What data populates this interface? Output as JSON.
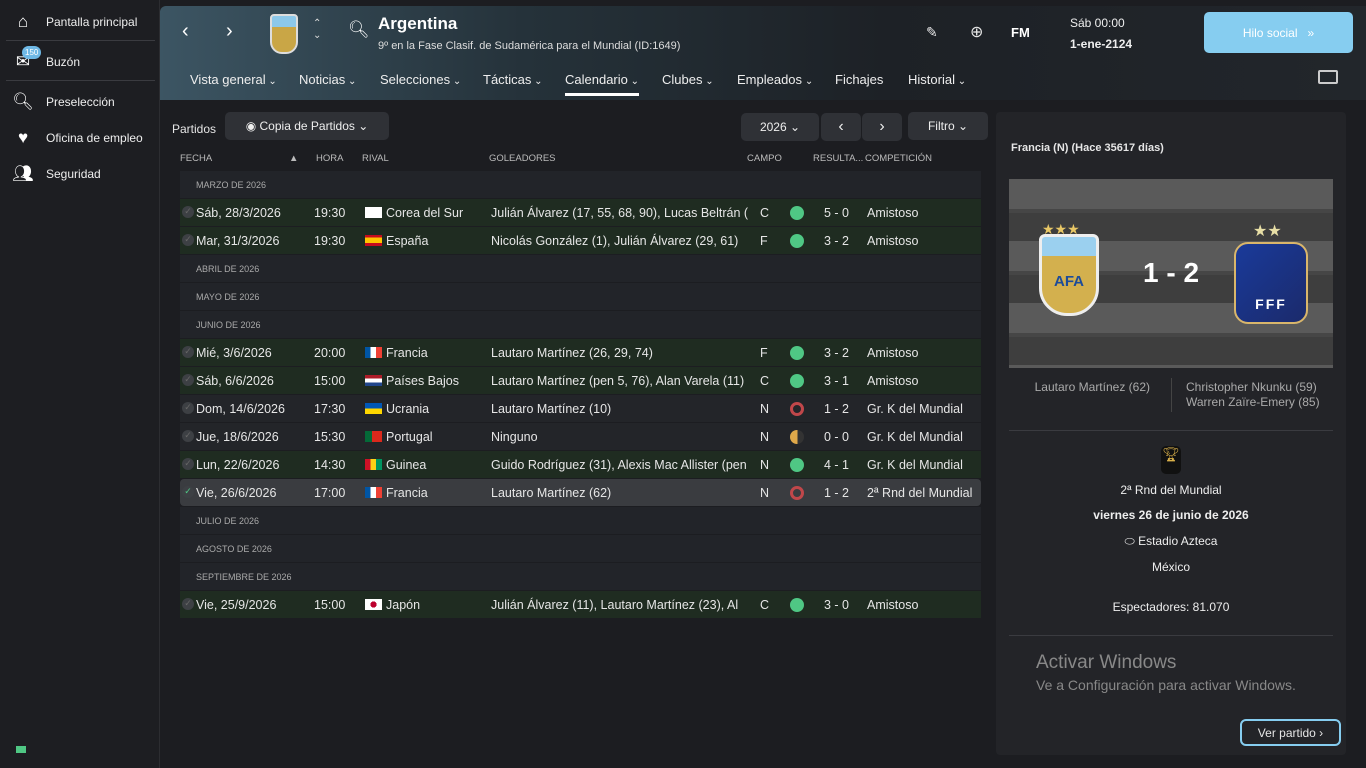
{
  "sidebar": {
    "items": [
      {
        "label": "Pantalla principal",
        "icon": "home-icon"
      },
      {
        "label": "Buzón",
        "icon": "inbox-icon",
        "badge": "150"
      },
      {
        "label": "Preselección",
        "icon": "search-icon"
      },
      {
        "label": "Oficina de empleo",
        "icon": "job-search-icon"
      },
      {
        "label": "Seguridad",
        "icon": "security-icon"
      }
    ]
  },
  "header": {
    "title": "Argentina",
    "subtitle": "9º en la Fase Clasif. de Sudamérica para el Mundial (ID:1649)",
    "fm_label": "FM",
    "date_line1": "Sáb 00:00",
    "date_line2": "1-ene-2124",
    "social_label": "Hilo social",
    "nav": [
      "Vista general",
      "Noticias",
      "Selecciones",
      "Tácticas",
      "Calendario",
      "Clubes",
      "Empleados",
      "Fichajes",
      "Historial"
    ],
    "active_nav": "Calendario"
  },
  "toolbar": {
    "label": "Partidos",
    "view": "Copia de Partidos",
    "year": "2026",
    "filter": "Filtro"
  },
  "columns": [
    "FECHA",
    "HORA",
    "RIVAL",
    "GOLEADORES",
    "CAMPO",
    "RESULTA...",
    "COMPETICIÓN"
  ],
  "colors": {
    "win": "#4fc784",
    "loss": "#c0474a",
    "draw": "#e0a94a",
    "accent": "#86cdf0"
  },
  "rows": [
    {
      "type": "month",
      "label": "MARZO DE 2026"
    },
    {
      "type": "match",
      "date": "Sáb, 28/3/2026",
      "time": "19:30",
      "flag": "kr",
      "rival": "Corea del Sur",
      "scorers": "Julián Álvarez (17, 55, 68, 90), Lucas Beltrán (",
      "venue": "C",
      "outcome": "win",
      "score": "5 - 0",
      "competition": "Amistoso"
    },
    {
      "type": "match",
      "date": "Mar, 31/3/2026",
      "time": "19:30",
      "flag": "es",
      "rival": "España",
      "scorers": "Nicolás González (1), Julián Álvarez (29, 61)",
      "venue": "F",
      "outcome": "win",
      "score": "3 - 2",
      "competition": "Amistoso"
    },
    {
      "type": "month",
      "label": "ABRIL DE 2026"
    },
    {
      "type": "month",
      "label": "MAYO DE 2026"
    },
    {
      "type": "month",
      "label": "JUNIO DE 2026"
    },
    {
      "type": "match",
      "date": "Mié, 3/6/2026",
      "time": "20:00",
      "flag": "fr",
      "rival": "Francia",
      "scorers": "Lautaro Martínez (26, 29, 74)",
      "venue": "F",
      "outcome": "win",
      "score": "3 - 2",
      "competition": "Amistoso"
    },
    {
      "type": "match",
      "date": "Sáb, 6/6/2026",
      "time": "15:00",
      "flag": "nl",
      "rival": "Países Bajos",
      "scorers": "Lautaro Martínez (pen 5, 76), Alan Varela (11)",
      "venue": "C",
      "outcome": "win",
      "score": "3 - 1",
      "competition": "Amistoso"
    },
    {
      "type": "match",
      "date": "Dom, 14/6/2026",
      "time": "17:30",
      "flag": "ua",
      "rival": "Ucrania",
      "scorers": "Lautaro Martínez (10)",
      "venue": "N",
      "outcome": "loss",
      "score": "1 - 2",
      "competition": "Gr. K del Mundial"
    },
    {
      "type": "match",
      "date": "Jue, 18/6/2026",
      "time": "15:30",
      "flag": "pt",
      "rival": "Portugal",
      "scorers": "Ninguno",
      "venue": "N",
      "outcome": "draw",
      "score": "0 - 0",
      "competition": "Gr. K del Mundial"
    },
    {
      "type": "match",
      "date": "Lun, 22/6/2026",
      "time": "14:30",
      "flag": "gn",
      "rival": "Guinea",
      "scorers": "Guido Rodríguez (31), Alexis Mac Allister (pen",
      "venue": "N",
      "outcome": "win",
      "score": "4 - 1",
      "competition": "Gr. K del Mundial"
    },
    {
      "type": "match",
      "date": "Vie, 26/6/2026",
      "time": "17:00",
      "flag": "fr",
      "rival": "Francia",
      "scorers": "Lautaro Martínez (62)",
      "venue": "N",
      "outcome": "loss",
      "score": "1 - 2",
      "competition": "2ª Rnd del Mundial",
      "selected": true
    },
    {
      "type": "month",
      "label": "JULIO DE 2026"
    },
    {
      "type": "month",
      "label": "AGOSTO DE 2026"
    },
    {
      "type": "month",
      "label": "SEPTIEMBRE DE 2026"
    },
    {
      "type": "match",
      "date": "Vie, 25/9/2026",
      "time": "15:00",
      "flag": "jp",
      "rival": "Japón",
      "scorers": "Julián Álvarez (11), Lautaro Martínez (23), Al",
      "venue": "C",
      "outcome": "win",
      "score": "3 - 0",
      "competition": "Amistoso"
    }
  ],
  "panel": {
    "heading": "Francia (N) (Hace 35617 días)",
    "score": "1 - 2",
    "home_crest": "AFA",
    "away_crest": "FFF",
    "home_scorers": [
      "Lautaro Martínez (62)"
    ],
    "away_scorers": [
      "Christopher Nkunku (59)",
      "Warren Zaïre-Emery (85)"
    ],
    "competition": "2ª Rnd del Mundial",
    "date": "viernes 26 de junio de 2026",
    "stadium": "Estadio Azteca",
    "country": "México",
    "attendance": "Espectadores: 81.070",
    "watermark_title": "Activar Windows",
    "watermark_text": "Ve a Configuración para activar Windows.",
    "view_match": "Ver partido"
  }
}
